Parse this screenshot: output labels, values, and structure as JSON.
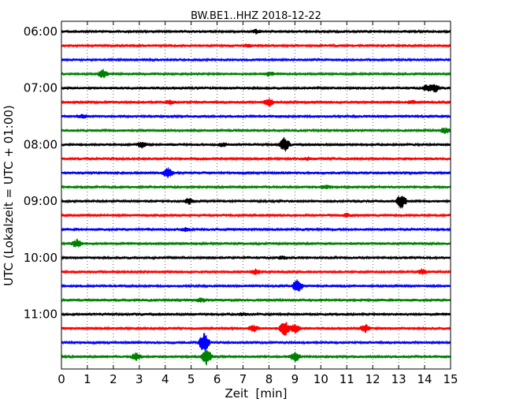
{
  "chart_data": {
    "type": "line",
    "title": "BW.BE1..HHZ 2018-12-22",
    "xlabel": "Zeit  [min]",
    "ylabel": "UTC (Lokalzeit = UTC + 01:00)",
    "xlim": [
      0,
      15
    ],
    "x_ticks": [
      "0",
      "1",
      "2",
      "3",
      "4",
      "5",
      "6",
      "7",
      "8",
      "9",
      "10",
      "11",
      "12",
      "13",
      "14",
      "15"
    ],
    "y_tick_labels": [
      "06:00",
      "07:00",
      "08:00",
      "09:00",
      "10:00",
      "11:00"
    ],
    "grid": "vertical dotted",
    "trace_colors": [
      "#000000",
      "#ff0000",
      "#0000ff",
      "#008000"
    ],
    "traces": [
      {
        "start": "06:00",
        "events": [
          [
            7.5,
            0.2
          ]
        ]
      },
      {
        "start": "06:15",
        "events": [
          [
            7.2,
            0.15
          ]
        ]
      },
      {
        "start": "06:30",
        "events": []
      },
      {
        "start": "06:45",
        "events": [
          [
            1.6,
            0.5
          ],
          [
            8.0,
            0.2
          ]
        ]
      },
      {
        "start": "07:00",
        "events": [
          [
            14.1,
            0.4
          ],
          [
            14.4,
            0.45
          ]
        ]
      },
      {
        "start": "07:15",
        "events": [
          [
            8.0,
            0.5
          ],
          [
            4.2,
            0.2
          ],
          [
            13.5,
            0.2
          ]
        ]
      },
      {
        "start": "07:30",
        "events": [
          [
            0.8,
            0.2
          ]
        ]
      },
      {
        "start": "07:45",
        "events": [
          [
            14.8,
            0.3
          ]
        ]
      },
      {
        "start": "08:00",
        "events": [
          [
            3.1,
            0.3
          ],
          [
            8.6,
            0.9
          ],
          [
            6.2,
            0.2
          ]
        ]
      },
      {
        "start": "08:15",
        "events": [
          [
            9.5,
            0.15
          ]
        ]
      },
      {
        "start": "08:30",
        "events": [
          [
            4.1,
            0.6
          ]
        ]
      },
      {
        "start": "08:45",
        "events": [
          [
            10.2,
            0.2
          ]
        ]
      },
      {
        "start": "09:00",
        "events": [
          [
            4.9,
            0.3
          ],
          [
            13.1,
            0.9
          ]
        ]
      },
      {
        "start": "09:15",
        "events": [
          [
            11.0,
            0.2
          ]
        ]
      },
      {
        "start": "09:30",
        "events": [
          [
            4.8,
            0.2
          ]
        ]
      },
      {
        "start": "09:45",
        "events": [
          [
            0.6,
            0.5
          ]
        ]
      },
      {
        "start": "10:00",
        "events": [
          [
            8.5,
            0.15
          ]
        ]
      },
      {
        "start": "10:15",
        "events": [
          [
            7.5,
            0.3
          ],
          [
            13.9,
            0.3
          ]
        ]
      },
      {
        "start": "10:30",
        "events": [
          [
            9.1,
            0.9
          ]
        ]
      },
      {
        "start": "10:45",
        "events": [
          [
            5.4,
            0.2
          ]
        ]
      },
      {
        "start": "11:00",
        "events": [
          [
            7.0,
            0.15
          ]
        ]
      },
      {
        "start": "11:15",
        "events": [
          [
            7.4,
            0.4
          ],
          [
            8.6,
            1.0
          ],
          [
            9.0,
            0.6
          ],
          [
            11.7,
            0.5
          ]
        ]
      },
      {
        "start": "11:30",
        "events": [
          [
            5.5,
            1.4
          ]
        ]
      },
      {
        "start": "11:45",
        "events": [
          [
            2.9,
            0.5
          ],
          [
            5.6,
            1.0
          ],
          [
            9.0,
            0.6
          ]
        ]
      }
    ]
  }
}
